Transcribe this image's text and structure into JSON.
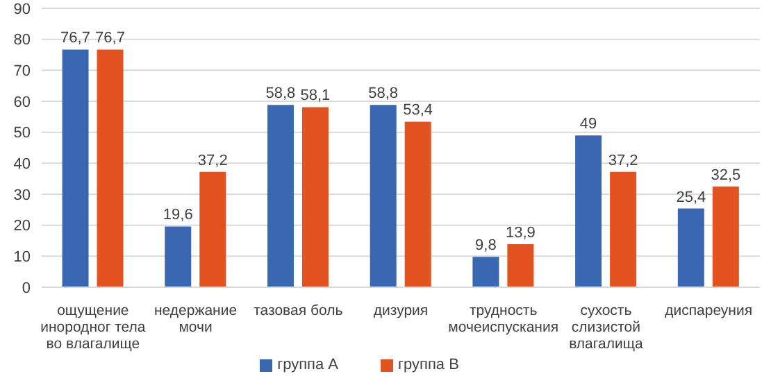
{
  "chart_data": {
    "type": "bar",
    "categories": [
      "ощущение инородног тела во влагалище",
      "недержание мочи",
      "тазовая боль",
      "дизурия",
      "трудность мочеиспускания",
      "сухость слизистой влагалища",
      "диспареуния"
    ],
    "series": [
      {
        "name": "группа А",
        "color": "#3a67b1",
        "values": [
          76.7,
          19.6,
          58.8,
          58.8,
          9.8,
          49,
          25.4
        ],
        "value_labels": [
          "76,7",
          "19,6",
          "58,8",
          "58,8",
          "9,8",
          "49",
          "25,4"
        ]
      },
      {
        "name": "группа В",
        "color": "#e2531f",
        "values": [
          76.7,
          37.2,
          58.1,
          53.4,
          13.9,
          37.2,
          32.5
        ],
        "value_labels": [
          "76,7",
          "37,2",
          "58,1",
          "53,4",
          "13,9",
          "37,2",
          "32,5"
        ]
      }
    ],
    "ylim": [
      0,
      90
    ],
    "yticks": [
      0,
      10,
      20,
      30,
      40,
      50,
      60,
      70,
      80,
      90
    ],
    "grid": "y",
    "legend": "bottom"
  }
}
